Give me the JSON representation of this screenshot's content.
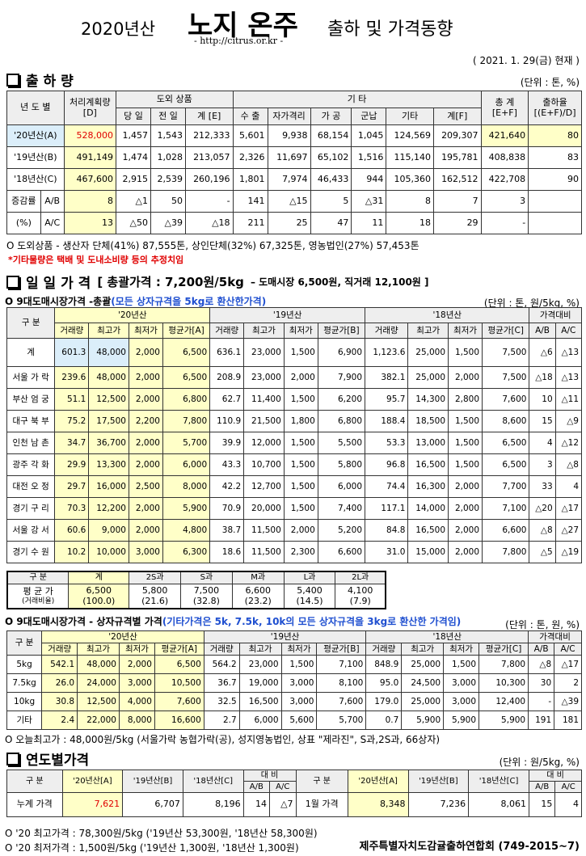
{
  "header": {
    "year": "2020년산",
    "title": "노지 온주",
    "subtitle": "출하 및 가격동향",
    "url": "- http://citrus.or.kr -",
    "date": "( 2021. 1. 29(금) 현재 )"
  },
  "shipment": {
    "title": "출 하 량",
    "unit": "(단위 : 톤, %)",
    "table": {
      "head": [
        [
          "년 도 별",
          "처리계획량\n[D]",
          "도외 상품",
          "기 타",
          "총 계\n[E+F]",
          "출하율\n[(E+F)/D]"
        ],
        [
          "당 일",
          "전 일",
          "계 [E]",
          "수 출",
          "자가격리",
          "가 공",
          "군납",
          "기타",
          "계[F]"
        ]
      ],
      "rows": [
        {
          "label": "'20년산(A)",
          "cells": [
            "528,000",
            "1,457",
            "1,543",
            "212,333",
            "5,601",
            "9,938",
            "68,154",
            "1,045",
            "124,569",
            "209,307",
            "421,640",
            "80"
          ]
        },
        {
          "label": "'19년산(B)",
          "cells": [
            "491,149",
            "1,474",
            "1,028",
            "213,057",
            "2,326",
            "11,697",
            "65,102",
            "1,516",
            "115,140",
            "195,781",
            "408,838",
            "83"
          ]
        },
        {
          "label": "'18년산(C)",
          "cells": [
            "467,600",
            "2,915",
            "2,539",
            "260,196",
            "1,801",
            "7,974",
            "46,433",
            "944",
            "105,360",
            "162,512",
            "422,708",
            "90"
          ]
        },
        {
          "label": "증감률",
          "sub": "A/B",
          "cells": [
            "8",
            "△1",
            "50",
            "-",
            "141",
            "△15",
            "5",
            "△31",
            "8",
            "7",
            "3"
          ]
        },
        {
          "label": "(%)",
          "sub": "A/C",
          "cells": [
            "13",
            "△50",
            "△39",
            "△18",
            "211",
            "25",
            "47",
            "11",
            "18",
            "29",
            "-"
          ]
        }
      ]
    },
    "notes": [
      "O 도외상품 - 생산자 단체(41%) 87,555톤,   상인단체(32%) 67,325톤,   영농법인(27%) 57,453톤",
      "*기타물량은 택배 및 도내소비량 등의 추정치임"
    ]
  },
  "daily": {
    "title": "일 일 가 격",
    "summary": "[ 총괄가격 : 7,200원/5kg",
    "summary_detail": "– 도매시장 6,500원,  직거래 12,100원 ]",
    "market": {
      "label": "O 9대도매시장가격 -총괄",
      "label_note": "(모든 상자규격을 5kg로 환산한가격)",
      "unit": "(단위 : 톤, 원/5kg, %)",
      "table": {
        "head": [
          [
            "구 분",
            "'20년산",
            "'19년산",
            "'18년산",
            "가격대비"
          ],
          [
            "거래량",
            "최고가",
            "최저가",
            "평균가[A]",
            "거래량",
            "최고가",
            "최저가",
            "평균가[B]",
            "거래량",
            "최고가",
            "최저가",
            "평균가[C]",
            "A/B",
            "A/C"
          ]
        ],
        "rows": [
          {
            "label": "계",
            "cells": [
              "601.3",
              "48,000",
              "2,000",
              "6,500",
              "636.1",
              "23,000",
              "1,500",
              "6,900",
              "1,123.6",
              "25,000",
              "1,500",
              "7,500",
              "△6",
              "△13"
            ]
          },
          {
            "label": "서울 가 락",
            "cells": [
              "239.6",
              "48,000",
              "2,000",
              "6,500",
              "208.9",
              "23,000",
              "2,000",
              "7,900",
              "382.1",
              "25,000",
              "2,000",
              "7,500",
              "△18",
              "△13"
            ]
          },
          {
            "label": "부산 엄 궁",
            "cells": [
              "51.1",
              "12,500",
              "2,000",
              "6,800",
              "62.7",
              "11,400",
              "1,500",
              "6,200",
              "95.7",
              "14,300",
              "2,800",
              "7,600",
              "10",
              "△11"
            ]
          },
          {
            "label": "대구 북 부",
            "cells": [
              "75.2",
              "17,500",
              "2,200",
              "7,800",
              "110.9",
              "21,500",
              "1,800",
              "6,800",
              "188.4",
              "18,500",
              "1,500",
              "8,600",
              "15",
              "△9"
            ]
          },
          {
            "label": "인천 남 촌",
            "cells": [
              "34.7",
              "36,700",
              "2,000",
              "5,700",
              "39.9",
              "12,000",
              "1,500",
              "5,500",
              "53.3",
              "13,000",
              "1,500",
              "6,500",
              "4",
              "△12"
            ]
          },
          {
            "label": "광주 각 화",
            "cells": [
              "29.9",
              "13,300",
              "2,000",
              "6,000",
              "43.3",
              "10,700",
              "1,500",
              "5,800",
              "96.8",
              "16,500",
              "1,500",
              "6,500",
              "3",
              "△8"
            ]
          },
          {
            "label": "대전 오 정",
            "cells": [
              "29.7",
              "16,000",
              "2,500",
              "8,000",
              "42.2",
              "12,700",
              "1,500",
              "6,000",
              "74.4",
              "16,300",
              "2,000",
              "7,700",
              "33",
              "4"
            ]
          },
          {
            "label": "경기 구 리",
            "cells": [
              "70.3",
              "12,200",
              "2,000",
              "5,900",
              "70.9",
              "20,000",
              "1,500",
              "7,400",
              "117.1",
              "14,000",
              "2,000",
              "7,100",
              "△20",
              "△17"
            ]
          },
          {
            "label": "서울 강 서",
            "cells": [
              "60.6",
              "9,000",
              "2,000",
              "4,800",
              "38.7",
              "11,500",
              "2,000",
              "5,200",
              "84.8",
              "16,500",
              "2,000",
              "6,600",
              "△8",
              "△27"
            ]
          },
          {
            "label": "경기 수 원",
            "cells": [
              "10.2",
              "10,000",
              "3,000",
              "6,300",
              "18.6",
              "11,500",
              "2,300",
              "6,600",
              "31.0",
              "15,000",
              "2,000",
              "7,800",
              "△5",
              "△19"
            ]
          }
        ]
      }
    },
    "sizes": {
      "head": [
        "구  분",
        "계",
        "2S과",
        "S과",
        "M과",
        "L과",
        "2L과"
      ],
      "row": {
        "label": [
          "평 균 가",
          "(거래비율)"
        ],
        "cells": [
          [
            "6,500",
            "(100.0)"
          ],
          [
            "5,800",
            "(21.6)"
          ],
          [
            "7,500",
            "(32.8)"
          ],
          [
            "6,600",
            "(23.2)"
          ],
          [
            "5,400",
            "(14.5)"
          ],
          [
            "4,100",
            "(7.9)"
          ]
        ]
      }
    },
    "by_size": {
      "label": "O 9대도매시장가격 - 상자규격별 가격",
      "label_note": "(기타가격은 5k, 7.5k, 10k의 모든 상자규격을 3kg로 환산한 가격임)",
      "unit": "(단위 : 톤, 원, %)",
      "table": {
        "head": [
          [
            "구 분",
            "'20년산",
            "'19년산",
            "'18년산",
            "가격대비"
          ],
          [
            "거래량",
            "최고가",
            "최저가",
            "평균가[A]",
            "거래량",
            "최고가",
            "최저가",
            "평균가[B]",
            "거래량",
            "최고가",
            "최저가",
            "평균가[C]",
            "A/B",
            "A/C"
          ]
        ],
        "rows": [
          {
            "label": "5kg",
            "cells": [
              "542.1",
              "48,000",
              "2,000",
              "6,500",
              "564.2",
              "23,000",
              "1,500",
              "7,100",
              "848.9",
              "25,000",
              "1,500",
              "7,800",
              "△8",
              "△17"
            ]
          },
          {
            "label": "7.5kg",
            "cells": [
              "26.0",
              "24,000",
              "3,000",
              "10,500",
              "36.7",
              "19,000",
              "3,000",
              "8,100",
              "95.0",
              "24,500",
              "3,000",
              "10,300",
              "30",
              "2"
            ]
          },
          {
            "label": "10kg",
            "cells": [
              "30.8",
              "12,500",
              "4,000",
              "7,600",
              "32.5",
              "16,500",
              "3,000",
              "7,600",
              "179.0",
              "25,000",
              "3,000",
              "12,400",
              "-",
              "△39"
            ]
          },
          {
            "label": "기타",
            "cells": [
              "2.4",
              "22,000",
              "8,000",
              "16,600",
              "2.7",
              "6,000",
              "5,600",
              "5,700",
              "0.7",
              "5,900",
              "5,900",
              "5,900",
              "191",
              "181"
            ]
          }
        ]
      }
    },
    "note": "O 오늘최고가 : 48,000원/5kg (서울가락  농협가락(공),   성지영농법인,   상표 \"제라진\",   S과,2S과,   66상자)"
  },
  "yearly": {
    "title": "연도별가격",
    "unit": "(단위 : 원/5kg, %)",
    "table": {
      "head": [
        [
          "구  분",
          "'20년산[A]",
          "'19년산[B]",
          "'18년산[C]",
          "대  비",
          "구  분",
          "'20년산[A]",
          "'19년산[B]",
          "'18년산[C]",
          "대  비"
        ],
        [
          "A/B",
          "A/C",
          "A/B",
          "A/C"
        ]
      ],
      "rows": [
        {
          "cells": [
            "누계 가격",
            "7,621",
            "6,707",
            "8,196",
            "14",
            "△7",
            "1월 가격",
            "8,348",
            "7,236",
            "8,061",
            "15",
            "4"
          ]
        }
      ]
    },
    "notes": [
      "O '20 최고가격 : 78,300원/5kg ('19년산 53,300원, '18년산 58,300원)",
      "O '20 최저가격 :  1,500원/5kg ('19년산 1,300원, '18년산  1,300원)"
    ],
    "org": "제주특별자치도감귤출하연합회 (749-2015~7)"
  }
}
